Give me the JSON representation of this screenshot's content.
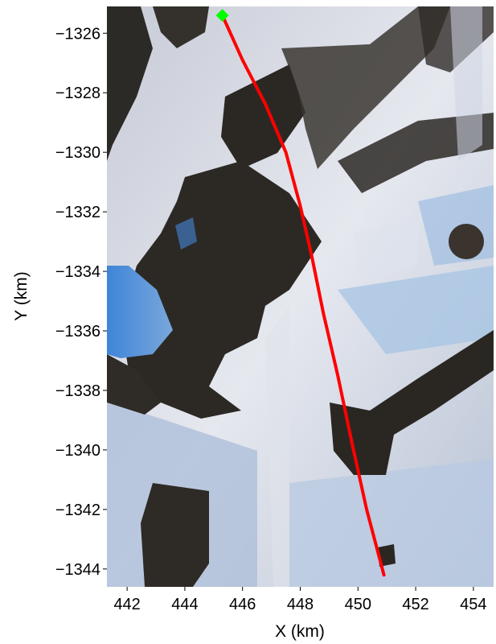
{
  "chart_data": {
    "type": "line",
    "xlabel": "X (km)",
    "ylabel": "Y (km)",
    "xlim": [
      441.3,
      454.7
    ],
    "ylim": [
      -1344.6,
      -1325.1
    ],
    "x_ticks": [
      442,
      444,
      446,
      448,
      450,
      452,
      454
    ],
    "y_ticks": [
      -1326,
      -1328,
      -1330,
      -1332,
      -1334,
      -1336,
      -1338,
      -1340,
      -1342,
      -1344
    ],
    "x_tick_labels": [
      "442",
      "444",
      "446",
      "448",
      "450",
      "452",
      "454"
    ],
    "y_tick_labels": [
      "−1326",
      "−1328",
      "−1330",
      "−1332",
      "−1334",
      "−1336",
      "−1338",
      "−1340",
      "−1342",
      "−1344"
    ],
    "grid": false,
    "background": "satellite imagery (snow, rock, water)",
    "series": [
      {
        "color": "#ff0000",
        "x": [
          445.3,
          446.0,
          446.8,
          447.5,
          448.0,
          448.4,
          448.8,
          449.3,
          449.8,
          450.3,
          450.9
        ],
        "y": [
          -1325.4,
          -1326.9,
          -1328.4,
          -1330.0,
          -1331.8,
          -1333.5,
          -1335.4,
          -1337.5,
          -1339.8,
          -1342.0,
          -1344.2
        ]
      }
    ],
    "markers": [
      {
        "shape": "diamond",
        "color": "#00ff00",
        "x": 445.3,
        "y": -1325.4
      }
    ]
  }
}
